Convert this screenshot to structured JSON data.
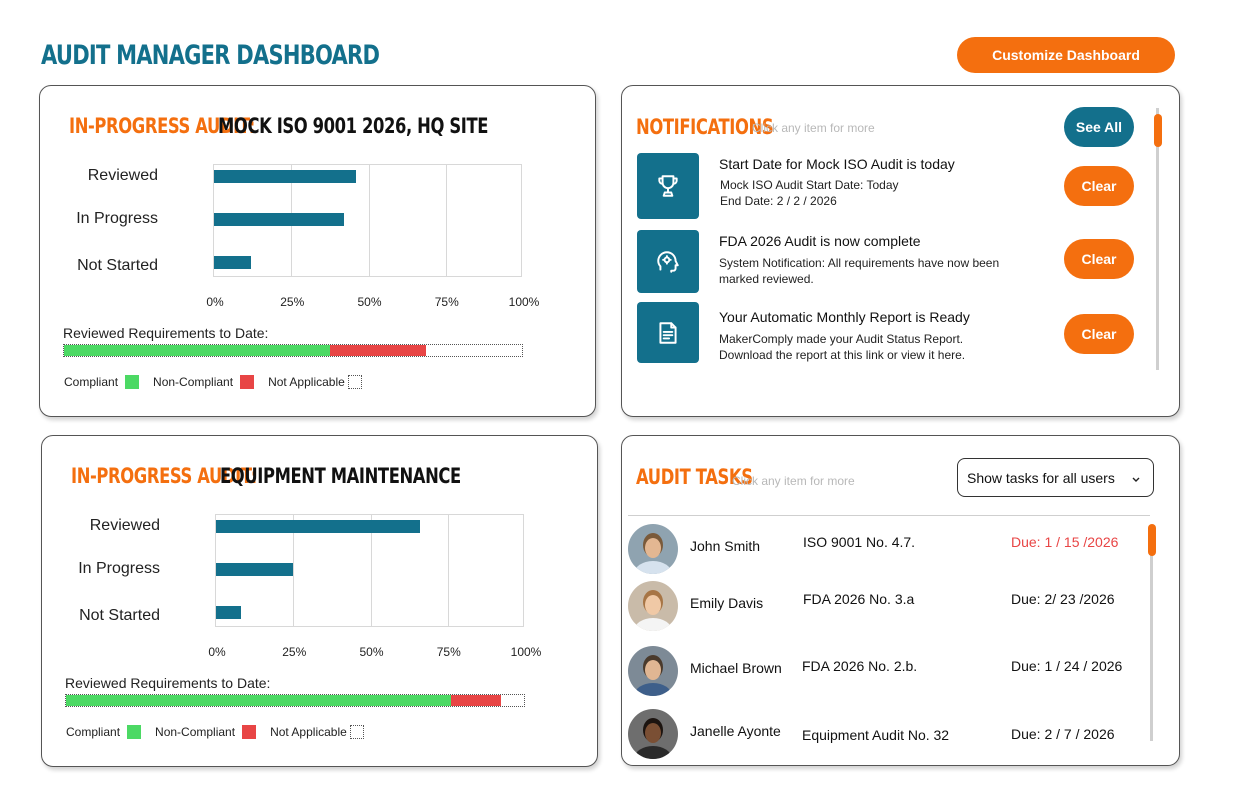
{
  "header": {
    "title": "AUDIT MANAGER DASHBOARD",
    "customize_label": "Customize Dashboard"
  },
  "colors": {
    "brand_teal": "#13708c",
    "accent_orange": "#f46f0f",
    "compliant_green": "#4cd964",
    "non_compliant_red": "#e84545"
  },
  "audits": [
    {
      "prefix": "IN-PROGRESS AUDIT:",
      "name": "MOCK ISO 9001 2026, HQ SITE",
      "chart_data": {
        "type": "bar",
        "orientation": "horizontal",
        "categories": [
          "Reviewed",
          "In Progress",
          "Not Started"
        ],
        "values": [
          46,
          42,
          12
        ],
        "xlim": [
          0,
          100
        ],
        "x_ticks": [
          "0%",
          "25%",
          "50%",
          "75%",
          "100%"
        ],
        "grid": true
      },
      "progress_label": "Reviewed Requirements to Date:",
      "progress": {
        "compliant": 58,
        "non_compliant": 21,
        "not_applicable": 21
      },
      "legend": {
        "compliant": "Compliant",
        "non_compliant": "Non-Compliant",
        "not_applicable": "Not Applicable"
      }
    },
    {
      "prefix": "IN-PROGRESS AUDIT:",
      "name": "EQUIPMENT MAINTENANCE",
      "chart_data": {
        "type": "bar",
        "orientation": "horizontal",
        "categories": [
          "Reviewed",
          "In Progress",
          "Not Started"
        ],
        "values": [
          66,
          25,
          8
        ],
        "xlim": [
          0,
          100
        ],
        "x_ticks": [
          "0%",
          "25%",
          "50%",
          "75%",
          "100%"
        ],
        "grid": true
      },
      "progress_label": "Reviewed Requirements to Date:",
      "progress": {
        "compliant": 84,
        "non_compliant": 11,
        "not_applicable": 5
      },
      "legend": {
        "compliant": "Compliant",
        "non_compliant": "Non-Compliant",
        "not_applicable": "Not Applicable"
      }
    }
  ],
  "notifications": {
    "title": "NOTIFICATIONS",
    "hint": "Click any item for more",
    "see_all_label": "See All",
    "items": [
      {
        "icon": "trophy-icon",
        "title": "Start Date for Mock ISO Audit is today",
        "body": "Mock ISO Audit Start Date: Today\nEnd Date: 2 / 2 / 2026",
        "clear_label": "Clear"
      },
      {
        "icon": "head-gear-icon",
        "title": "FDA 2026 Audit is now complete",
        "body": "System Notification: All requirements have now been marked reviewed.",
        "clear_label": "Clear"
      },
      {
        "icon": "document-icon",
        "title": "Your Automatic Monthly Report is Ready",
        "body": "MakerComply made your Audit Status Report. Download the report at this link or view it here.",
        "clear_label": "Clear"
      }
    ]
  },
  "tasks": {
    "title": "AUDIT TASKS",
    "hint": "Click any item for more",
    "filter_value": "Show tasks for all users",
    "items": [
      {
        "name": "John Smith",
        "ref": "ISO 9001 No. 4.7.",
        "due": "Due: 1 / 15 /2026",
        "overdue": true
      },
      {
        "name": "Emily Davis",
        "ref": "FDA 2026 No. 3.a",
        "due": "Due: 2/ 23 /2026",
        "overdue": false
      },
      {
        "name": "Michael Brown",
        "ref": "FDA 2026 No. 2.b.",
        "due": "Due: 1 / 24 / 2026",
        "overdue": false
      },
      {
        "name": "Janelle Ayonte",
        "ref": "Equipment Audit No. 32",
        "due": "Due: 2 / 7 / 2026",
        "overdue": false
      }
    ]
  }
}
